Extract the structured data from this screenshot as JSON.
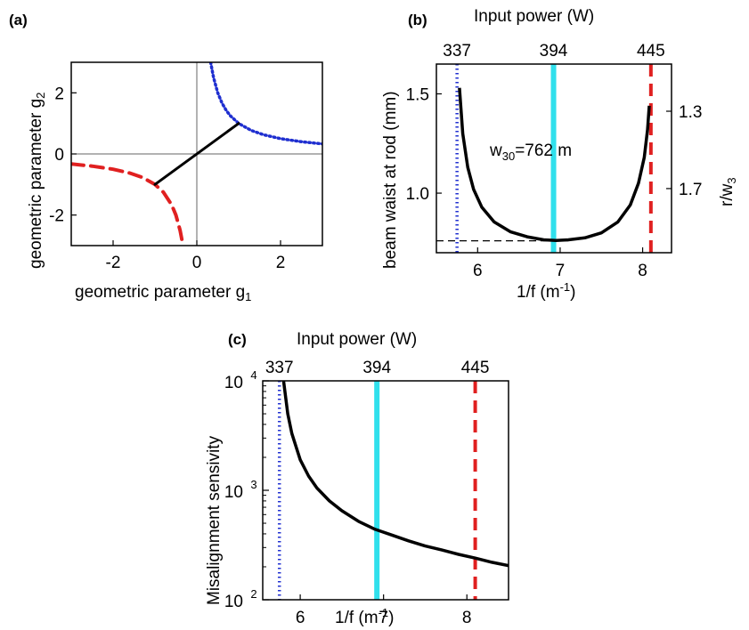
{
  "chart_data": [
    {
      "id": "a",
      "type": "line",
      "panel_label": "(a)",
      "xlabel": "geometric parameter g",
      "xlabel_sub": "1",
      "ylabel": "geometric parameter g",
      "ylabel_sub": "2",
      "xlim": [
        -3,
        3
      ],
      "ylim": [
        -3,
        3
      ],
      "xticks": [
        -2,
        0,
        2
      ],
      "yticks": [
        -2,
        0,
        2
      ],
      "xtick_labels": [
        "-2",
        "0",
        "2"
      ],
      "ytick_labels": [
        "-2",
        "0",
        "2"
      ],
      "series": [
        {
          "style": "dotted",
          "color": "#1f2fd0",
          "x": [
            0.33,
            0.4,
            0.5,
            0.6,
            0.7,
            0.8,
            1.0,
            1.3,
            1.6,
            2.0,
            2.5,
            3.0
          ],
          "y": [
            3.0,
            2.5,
            2.0,
            1.67,
            1.43,
            1.25,
            1.0,
            0.77,
            0.625,
            0.5,
            0.4,
            0.33
          ]
        },
        {
          "style": "dashed",
          "color": "#e02020",
          "x": [
            -3.0,
            -2.5,
            -2.0,
            -1.6,
            -1.3,
            -1.0,
            -0.8,
            -0.6,
            -0.5,
            -0.4,
            -0.33
          ],
          "y": [
            -0.33,
            -0.4,
            -0.5,
            -0.625,
            -0.77,
            -1.0,
            -1.25,
            -1.67,
            -2.0,
            -2.5,
            -3.0
          ]
        },
        {
          "style": "solid",
          "color": "#000000",
          "x": [
            -1.0,
            1.0
          ],
          "y": [
            -1.0,
            1.0
          ]
        }
      ]
    },
    {
      "id": "b",
      "type": "line",
      "panel_label": "(b)",
      "top_axis_label": "Input power (W)",
      "top_ticks": [
        "337",
        "394",
        "445"
      ],
      "xlabel": "1/f (m",
      "xlabel_sup": "-1",
      "xlabel_end": ")",
      "ylabel": "beam waist at rod (mm)",
      "right_label": "r/w",
      "right_label_sub": "3",
      "right_ticks": [
        "1.3",
        "1.7"
      ],
      "xlim": [
        5.5,
        8.35
      ],
      "ylim": [
        0.7,
        1.65
      ],
      "xticks": [
        6,
        7,
        8
      ],
      "yticks": [
        1.0,
        1.5
      ],
      "xtick_labels": [
        "6",
        "7",
        "8"
      ],
      "ytick_labels": [
        "1.0",
        "1.5"
      ],
      "annotation": {
        "text": "w",
        "sub": "30",
        "rest": "=762  m"
      },
      "verticals": [
        {
          "x": 5.75,
          "style": "dotted",
          "color": "#1f2fd0"
        },
        {
          "x": 6.92,
          "style": "solid",
          "color": "#30e0ec"
        },
        {
          "x": 8.1,
          "style": "dashed",
          "color": "#e02020"
        }
      ],
      "hline": {
        "y": 0.76,
        "style": "dashed"
      },
      "series": [
        {
          "style": "solid",
          "color": "#000000",
          "x": [
            5.78,
            5.82,
            5.88,
            5.95,
            6.05,
            6.2,
            6.4,
            6.6,
            6.8,
            6.95,
            7.1,
            7.3,
            7.5,
            7.7,
            7.85,
            7.95,
            8.02,
            8.06,
            8.08
          ],
          "y": [
            1.53,
            1.3,
            1.13,
            1.02,
            0.93,
            0.855,
            0.805,
            0.78,
            0.765,
            0.762,
            0.765,
            0.775,
            0.8,
            0.855,
            0.94,
            1.05,
            1.18,
            1.32,
            1.44
          ]
        }
      ]
    },
    {
      "id": "c",
      "type": "line",
      "panel_label": "(c)",
      "top_axis_label": "Input power (W)",
      "top_ticks": [
        "337",
        "394",
        "445"
      ],
      "xlabel": "1/f (m",
      "xlabel_sup": "-1",
      "xlabel_end": ")",
      "ylabel": "Misalignment sensivity",
      "yscale": "log",
      "xlim": [
        5.55,
        8.5
      ],
      "ylim": [
        100,
        10000
      ],
      "xticks": [
        6,
        7,
        8
      ],
      "yticks": [
        100,
        1000,
        10000
      ],
      "xtick_labels": [
        "6",
        "7",
        "8"
      ],
      "ytick_base": "10",
      "ytick_exps": [
        "2",
        "3",
        "4"
      ],
      "verticals": [
        {
          "x": 5.75,
          "style": "dotted",
          "color": "#1f2fd0"
        },
        {
          "x": 6.92,
          "style": "solid",
          "color": "#30e0ec"
        },
        {
          "x": 8.1,
          "style": "dashed",
          "color": "#e02020"
        }
      ],
      "series": [
        {
          "style": "solid",
          "color": "#000000",
          "x": [
            5.8,
            5.85,
            5.9,
            6.0,
            6.1,
            6.2,
            6.35,
            6.5,
            6.7,
            6.9,
            7.1,
            7.3,
            7.5,
            7.7,
            7.9,
            8.1,
            8.3,
            8.5
          ],
          "y": [
            10000,
            5000,
            3300,
            1900,
            1350,
            1050,
            800,
            650,
            520,
            440,
            390,
            345,
            310,
            285,
            260,
            240,
            220,
            205
          ]
        }
      ]
    }
  ]
}
